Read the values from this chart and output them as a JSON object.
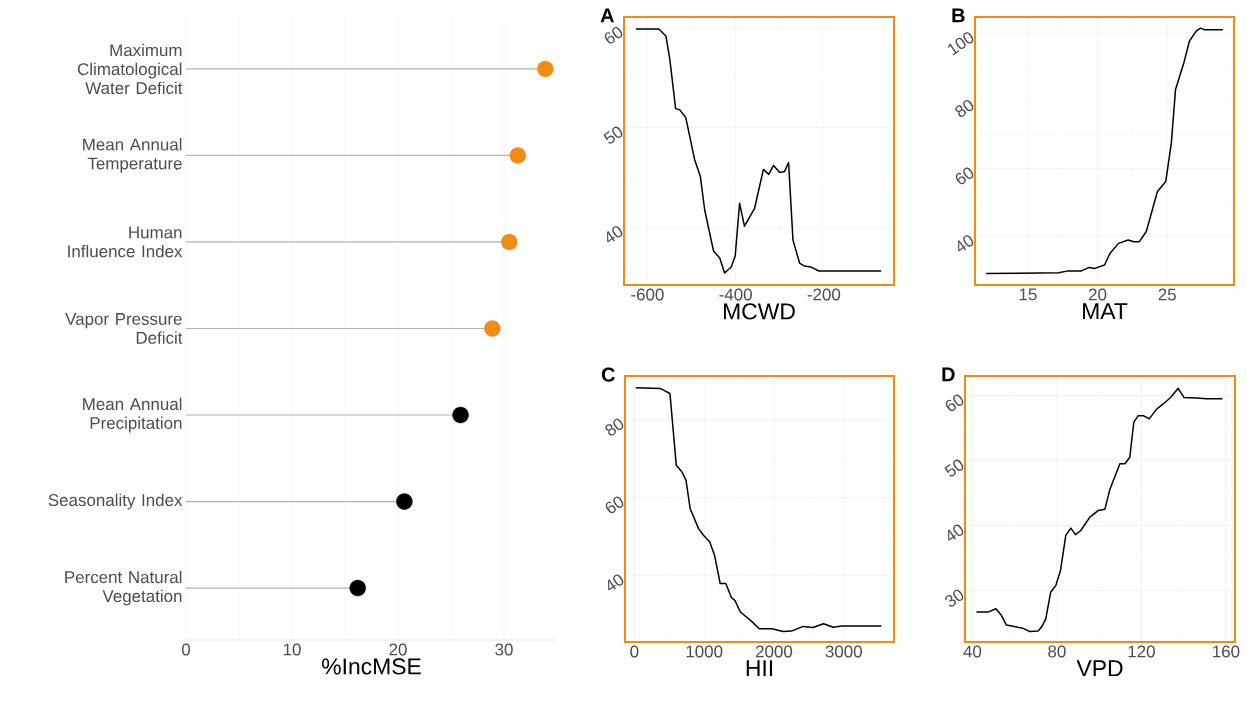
{
  "chart_data": [
    {
      "type": "lollipop",
      "orientation": "horizontal",
      "categories": [
        "Maximum Climatological Water Deficit",
        "Mean Annual Temperature",
        "Human Influence Index",
        "Vapor Pressure Deficit",
        "Mean Annual Precipitation",
        "Seasonality Index",
        "Percent Natural Vegetation"
      ],
      "values": [
        33.9,
        31.3,
        30.5,
        28.9,
        25.9,
        20.6,
        16.2
      ],
      "colors": [
        "#f08c14",
        "#f08c14",
        "#f08c14",
        "#f08c14",
        "#000000",
        "#000000",
        "#000000"
      ],
      "xlabel": "%IncMSE",
      "xlim": [
        0,
        35
      ],
      "xticks": [
        0,
        10,
        20,
        30
      ],
      "grid": "x"
    },
    {
      "type": "line",
      "title": "A",
      "xlabel": "MCWD",
      "color": "#000000",
      "x": [
        -626,
        -574,
        -558,
        -549,
        -536,
        -527,
        -513,
        -493,
        -480,
        -470,
        -450,
        -436,
        -425,
        -410,
        -401,
        -391,
        -380,
        -357,
        -337,
        -325,
        -314,
        -300,
        -289,
        -280,
        -270,
        -255,
        -244,
        -229,
        -211,
        -195,
        -70
      ],
      "values": [
        59.9,
        59.9,
        59.2,
        56.8,
        51.9,
        51.8,
        51.0,
        46.8,
        45.1,
        41.7,
        37.6,
        36.9,
        35.4,
        36.0,
        37.1,
        42.4,
        40.1,
        41.9,
        45.8,
        45.3,
        46.2,
        45.5,
        45.6,
        46.5,
        38.7,
        36.4,
        36.1,
        36.0,
        35.6,
        35.6,
        35.6
      ],
      "xlim": [
        -653,
        -41
      ],
      "ylim": [
        34.2,
        61.1
      ],
      "xticks": [
        -600,
        -400,
        -200
      ],
      "yticks": [
        40,
        50,
        60
      ],
      "grid": true
    },
    {
      "type": "line",
      "title": "B",
      "xlabel": "MAT",
      "color": "#000000",
      "x": [
        12.0,
        14.4,
        17.2,
        17.8,
        18.8,
        19.4,
        19.8,
        20.5,
        20.9,
        21.5,
        22.2,
        22.6,
        23.0,
        23.5,
        24.0,
        24.3,
        24.9,
        25.3,
        25.6,
        26.2,
        26.6,
        27.1,
        27.4,
        27.7,
        29.0
      ],
      "values": [
        29.0,
        29.1,
        29.2,
        29.7,
        29.7,
        30.8,
        30.5,
        31.5,
        35.0,
        37.9,
        38.9,
        38.4,
        38.4,
        41.4,
        48.8,
        53.2,
        56.2,
        67.6,
        83.4,
        91.3,
        97.7,
        100.7,
        101.5,
        101.0,
        101.0
      ],
      "xlim": [
        11.2,
        29.8
      ],
      "ylim": [
        25.6,
        104.8
      ],
      "xticks": [
        15,
        20,
        25
      ],
      "yticks": [
        40,
        60,
        80,
        100
      ],
      "grid": true
    },
    {
      "type": "line",
      "title": "C",
      "xlabel": "HII",
      "color": "#000000",
      "x": [
        20,
        370,
        510,
        600,
        680,
        740,
        800,
        920,
        990,
        1080,
        1150,
        1230,
        1310,
        1390,
        1440,
        1520,
        1680,
        1790,
        1970,
        2130,
        2250,
        2420,
        2560,
        2710,
        2850,
        2970,
        3540
      ],
      "values": [
        88.2,
        88.0,
        86.7,
        68.3,
        66.6,
        64.4,
        57.1,
        52.0,
        50.3,
        48.6,
        45.1,
        37.9,
        37.9,
        34.3,
        33.6,
        30.6,
        28.2,
        26.3,
        26.3,
        25.6,
        25.7,
        26.9,
        26.6,
        27.6,
        26.7,
        27.0,
        27.0
      ],
      "xlim": [
        -134,
        3720
      ],
      "ylim": [
        22.9,
        91.2
      ],
      "xticks": [
        0,
        1000,
        2000,
        3000
      ],
      "yticks": [
        40,
        60,
        80
      ],
      "grid": true
    },
    {
      "type": "line",
      "title": "D",
      "xlabel": "VPD",
      "color": "#000000",
      "x": [
        41.9,
        47.4,
        51.1,
        53.7,
        56.1,
        64.0,
        67.2,
        71.1,
        72.7,
        74.7,
        77.0,
        79.5,
        81.7,
        84.2,
        86.6,
        88.8,
        91.2,
        95.6,
        99.5,
        102.7,
        105.1,
        109.8,
        112.2,
        114.5,
        116.4,
        118.5,
        120.9,
        123.7,
        127.2,
        130.3,
        133.8,
        137.4,
        140.1,
        146.1,
        150.8,
        158.3
      ],
      "values": [
        26.7,
        26.7,
        27.2,
        26.2,
        24.7,
        24.2,
        23.7,
        23.8,
        24.4,
        25.6,
        29.7,
        30.8,
        33.1,
        38.5,
        39.6,
        38.6,
        39.2,
        41.3,
        42.3,
        42.5,
        45.6,
        49.5,
        49.5,
        50.5,
        55.9,
        56.9,
        56.9,
        56.4,
        57.9,
        58.7,
        59.7,
        61.1,
        59.7,
        59.6,
        59.5,
        59.5
      ],
      "xlim": [
        36.5,
        164.3
      ],
      "ylim": [
        22.1,
        63.0
      ],
      "xticks": [
        40,
        80,
        120,
        160
      ],
      "yticks": [
        30,
        40,
        50,
        60
      ],
      "grid": true
    }
  ]
}
